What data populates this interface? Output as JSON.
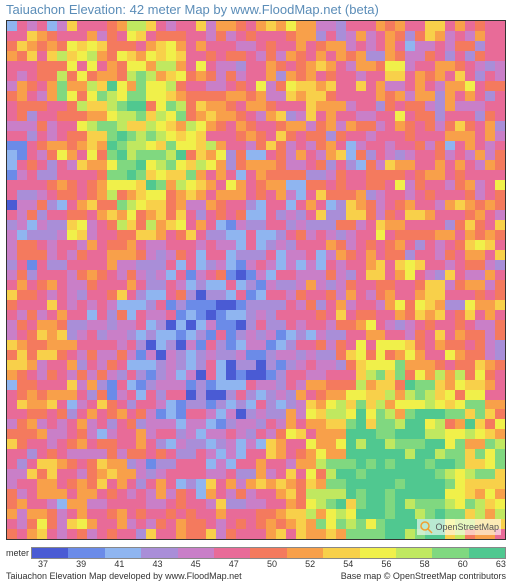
{
  "title": "Taiuachon Elevation: 42 meter Map by www.FloodMap.net (beta)",
  "map": {
    "type": "heatmap",
    "rows": 52,
    "cols": 50,
    "grid_color": "#333333",
    "background_color": "#ffffff",
    "palette": {
      "37": "#4a5bd4",
      "39": "#6b8be8",
      "41": "#8fb5f0",
      "43": "#a98ed8",
      "45": "#c97fc8",
      "47": "#e86b98",
      "50": "#f47a5e",
      "52": "#f8a04a",
      "54": "#f8d04a",
      "56": "#f0f04a",
      "58": "#c0e860",
      "60": "#80d880",
      "63": "#50c890"
    },
    "color_stops": [
      {
        "v": 37,
        "c": "#4a5bd4"
      },
      {
        "v": 39,
        "c": "#6b8be8"
      },
      {
        "v": 41,
        "c": "#8fb5f0"
      },
      {
        "v": 43,
        "c": "#a98ed8"
      },
      {
        "v": 45,
        "c": "#c97fc8"
      },
      {
        "v": 47,
        "c": "#e86b98"
      },
      {
        "v": 50,
        "c": "#f47a5e"
      },
      {
        "v": 52,
        "c": "#f8a04a"
      },
      {
        "v": 54,
        "c": "#f8d04a"
      },
      {
        "v": 56,
        "c": "#f0f04a"
      },
      {
        "v": 58,
        "c": "#c0e860"
      },
      {
        "v": 60,
        "c": "#80d880"
      },
      {
        "v": 63,
        "c": "#50c890"
      }
    ],
    "attribution_text": "OpenStreetMap",
    "attribution_icon_color": "#f0a030"
  },
  "legend": {
    "label": "meter",
    "ticks": [
      "37",
      "39",
      "41",
      "43",
      "45",
      "47",
      "50",
      "52",
      "54",
      "56",
      "58",
      "60",
      "63"
    ]
  },
  "footer": {
    "left": "Taiuachon Elevation Map developed by www.FloodMap.net",
    "right": "Base map © OpenStreetMap contributors"
  },
  "title_fontsize": 13,
  "title_color": "#5b8db8",
  "tick_fontsize": 9
}
